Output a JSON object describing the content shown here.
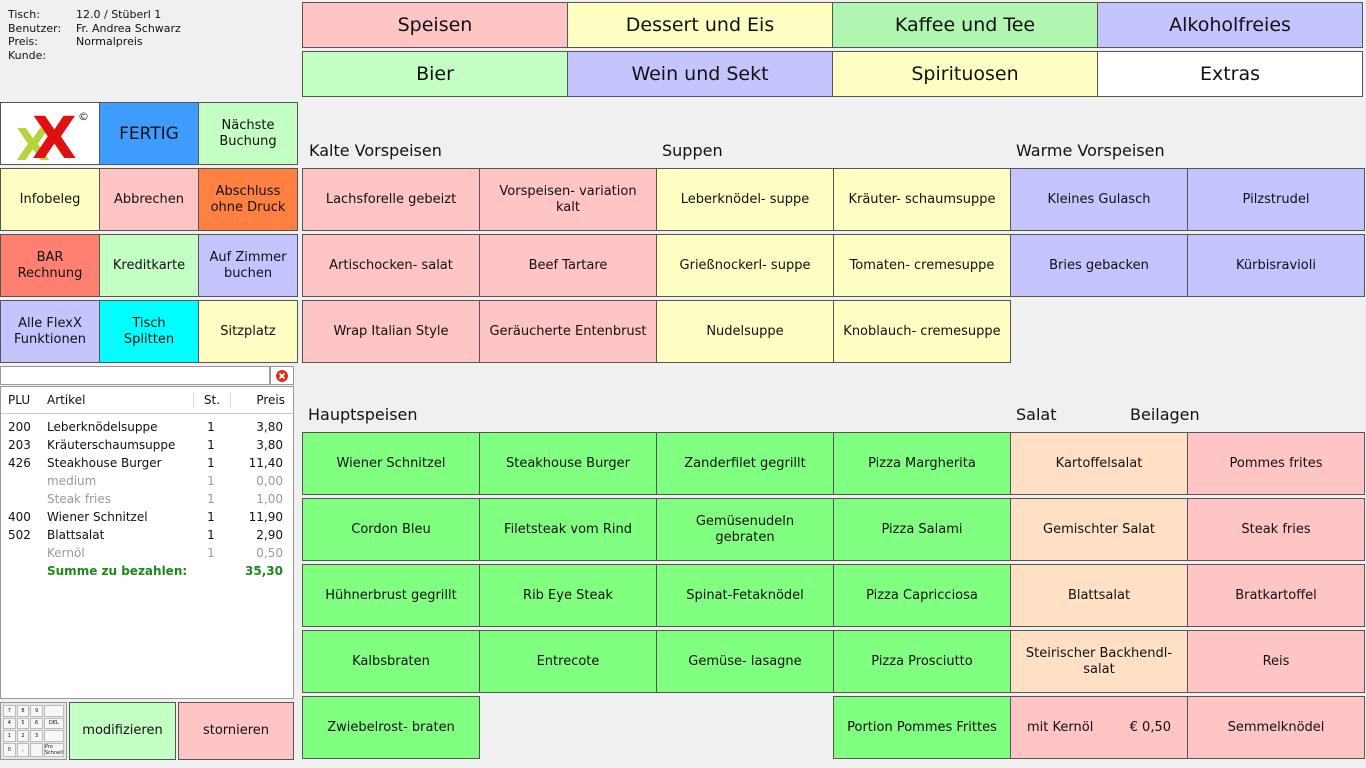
{
  "info": {
    "rows": [
      {
        "label": "Tisch:",
        "value": "12.0 / Stüberl 1"
      },
      {
        "label": "Benutzer:",
        "value": "Fr. Andrea Schwarz"
      },
      {
        "label": "Preis:",
        "value": "Normalpreis"
      },
      {
        "label": "Kunde:",
        "value": ""
      }
    ]
  },
  "categories": {
    "speisen": "Speisen",
    "dessert": "Dessert und Eis",
    "kaffee": "Kaffee und Tee",
    "alkoholfrei": "Alkoholfreies",
    "bier": "Bier",
    "wein": "Wein und Sekt",
    "spirituosen": "Spirituosen",
    "extras": "Extras"
  },
  "logo": {
    "text": "X",
    "copyright": "©"
  },
  "functions": {
    "fertig": "FERTIG",
    "naechste": "Nächste Buchung",
    "infobeleg": "Infobeleg",
    "abbrechen": "Abbrechen",
    "abschluss": "Abschluss ohne Druck",
    "bar": "BAR Rechnung",
    "kreditkarte": "Kreditkarte",
    "zimmer": "Auf Zimmer buchen",
    "flexx": "Alle FlexX Funktionen",
    "splitten": "Tisch Splitten",
    "sitzplatz": "Sitzplatz",
    "modifizieren": "modifizieren",
    "stornieren": "stornieren"
  },
  "search": {
    "value": "",
    "clear_icon": "clear-icon"
  },
  "order": {
    "headers": {
      "plu": "PLU",
      "artikel": "Artikel",
      "st": "St.",
      "preis": "Preis"
    },
    "rows": [
      {
        "plu": "200",
        "artikel": "Leberknödelsuppe",
        "st": "1",
        "preis": "3,80",
        "sub": false
      },
      {
        "plu": "203",
        "artikel": "Kräuterschaumsuppe",
        "st": "1",
        "preis": "3,80",
        "sub": false
      },
      {
        "plu": "426",
        "artikel": "Steakhouse Burger",
        "st": "1",
        "preis": "11,40",
        "sub": false
      },
      {
        "plu": "",
        "artikel": "medium",
        "st": "1",
        "preis": "0,00",
        "sub": true
      },
      {
        "plu": "",
        "artikel": "Steak fries",
        "st": "1",
        "preis": "1,00",
        "sub": true
      },
      {
        "plu": "400",
        "artikel": "Wiener Schnitzel",
        "st": "1",
        "preis": "11,90",
        "sub": false
      },
      {
        "plu": "502",
        "artikel": "Blattsalat",
        "st": "1",
        "preis": "2,90",
        "sub": false
      },
      {
        "plu": "",
        "artikel": "Kernöl",
        "st": "1",
        "preis": "0,50",
        "sub": true
      }
    ],
    "total_label": "Summe zu bezahlen:",
    "total_value": "35,30"
  },
  "numpad": {
    "keys": [
      "7",
      "8",
      "9",
      "",
      "4",
      "5",
      "6",
      "DEL",
      "1",
      "2",
      "3",
      "",
      "0",
      ",",
      "",
      "Pro Schnell"
    ]
  },
  "sections": {
    "kalte": "Kalte Vorspeisen",
    "suppen": "Suppen",
    "warme": "Warme Vorspeisen",
    "haupt": "Hauptspeisen",
    "salat": "Salat",
    "beilagen": "Beilagen"
  },
  "items": {
    "lachsforelle": "Lachsforelle gebeizt",
    "vorspeisen_variation": "Vorspeisen- variation kalt",
    "leberknoedel": "Leberknödel- suppe",
    "kraeuter": "Kräuter- schaumsuppe",
    "gulasch": "Kleines Gulasch",
    "pilzstrudel": "Pilzstrudel",
    "artischocken": "Artischocken- salat",
    "tartare": "Beef Tartare",
    "griess": "Grießnockerl- suppe",
    "tomaten": "Tomaten- cremesuppe",
    "bries": "Bries gebacken",
    "kuerbis": "Kürbisravioli",
    "wrap": "Wrap Italian Style",
    "entenbrust": "Geräucherte Entenbrust",
    "nudelsuppe": "Nudelsuppe",
    "knoblauch": "Knoblauch- cremesuppe",
    "wiener": "Wiener Schnitzel",
    "burger": "Steakhouse Burger",
    "zander": "Zanderfilet gegrillt",
    "margherita": "Pizza Margherita",
    "kartoffelsalat": "Kartoffelsalat",
    "pommes": "Pommes frites",
    "cordon": "Cordon Bleu",
    "filetsteak": "Filetsteak vom Rind",
    "gemuesenudeln": "Gemüsenudeln gebraten",
    "salami": "Pizza Salami",
    "gemischt": "Gemischter Salat",
    "steakfries": "Steak fries",
    "huehner": "Hühnerbrust gegrillt",
    "ribeye": "Rib Eye Steak",
    "spinat": "Spinat-Fetaknödel",
    "capricciosa": "Pizza Capricciosa",
    "blattsalat": "Blattsalat",
    "bratkartoffel": "Bratkartoffel",
    "kalbsbraten": "Kalbsbraten",
    "entrecote": "Entrecote",
    "lasagne": "Gemüse- lasagne",
    "prosciutto": "Pizza Prosciutto",
    "backhendl": "Steirischer Backhendl- salat",
    "reis": "Reis",
    "zwiebelrost": "Zwiebelrost- braten",
    "portion_pommes": "Portion Pommes Frittes",
    "kernoel_label": "mit Kernöl",
    "kernoel_price": "€ 0,50",
    "semmelknoedel": "Semmelknödel"
  }
}
